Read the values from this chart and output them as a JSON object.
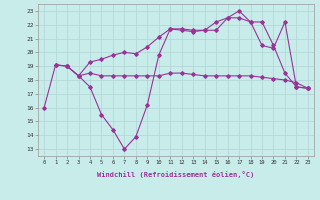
{
  "xlabel": "Windchill (Refroidissement éolien,°C)",
  "background_color": "#c8ecea",
  "grid_color": "#b0d4d4",
  "line_color": "#993399",
  "x_ticks": [
    0,
    1,
    2,
    3,
    4,
    5,
    6,
    7,
    8,
    9,
    10,
    11,
    12,
    13,
    14,
    15,
    16,
    17,
    18,
    19,
    20,
    21,
    22,
    23
  ],
  "y_ticks": [
    13,
    14,
    15,
    16,
    17,
    18,
    19,
    20,
    21,
    22,
    23
  ],
  "ylim": [
    12.5,
    23.5
  ],
  "xlim": [
    -0.5,
    23.5
  ],
  "series": [
    [
      16.0,
      19.1,
      19.0,
      18.3,
      17.5,
      15.5,
      14.4,
      13.0,
      13.9,
      16.2,
      19.8,
      21.7,
      21.6,
      21.5,
      21.6,
      21.6,
      22.5,
      23.0,
      22.2,
      20.5,
      20.3,
      22.2,
      17.5,
      17.4
    ],
    [
      null,
      19.1,
      19.0,
      18.3,
      18.5,
      18.3,
      18.3,
      18.3,
      18.3,
      18.3,
      18.3,
      18.5,
      18.5,
      18.4,
      18.3,
      18.3,
      18.3,
      18.3,
      18.3,
      18.2,
      18.1,
      18.0,
      17.8,
      17.4
    ],
    [
      null,
      null,
      19.0,
      18.3,
      19.3,
      19.5,
      19.8,
      20.0,
      19.9,
      20.4,
      21.1,
      21.7,
      21.7,
      21.6,
      21.6,
      22.2,
      22.5,
      22.5,
      22.2,
      22.2,
      20.5,
      18.5,
      17.5,
      17.4
    ]
  ]
}
